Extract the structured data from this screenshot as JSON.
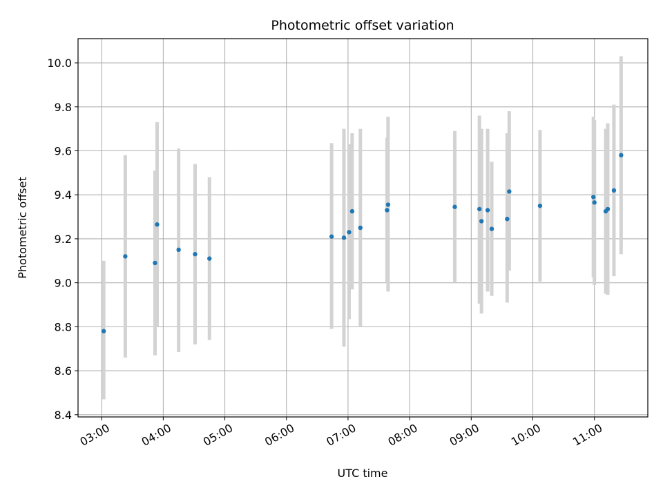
{
  "chart_data": {
    "type": "scatter",
    "title": "Photometric offset variation",
    "xlabel": "UTC time",
    "ylabel": "Photometric offset",
    "xlim": [
      "02:37",
      "11:52"
    ],
    "ylim": [
      8.39,
      10.11
    ],
    "grid": true,
    "x_ticks": [
      "03:00",
      "04:00",
      "05:00",
      "06:00",
      "07:00",
      "08:00",
      "09:00",
      "10:00",
      "11:00"
    ],
    "y_ticks": [
      "8.4",
      "8.6",
      "8.8",
      "9.0",
      "9.2",
      "9.4",
      "9.6",
      "9.8",
      "10.0"
    ],
    "marker_color": "#1f77b4",
    "errorbar_color": "#d3d3d3",
    "points": [
      {
        "x": "03:02",
        "y": 8.78,
        "low": 8.47,
        "high": 9.1
      },
      {
        "x": "03:23",
        "y": 9.12,
        "low": 8.66,
        "high": 9.58
      },
      {
        "x": "03:52",
        "y": 9.09,
        "low": 8.67,
        "high": 9.51
      },
      {
        "x": "03:54",
        "y": 9.265,
        "low": 8.8,
        "high": 9.73
      },
      {
        "x": "04:15",
        "y": 9.15,
        "low": 8.685,
        "high": 9.61
      },
      {
        "x": "04:31",
        "y": 9.13,
        "low": 8.72,
        "high": 9.54
      },
      {
        "x": "04:45",
        "y": 9.11,
        "low": 8.74,
        "high": 9.48
      },
      {
        "x": "06:44",
        "y": 9.21,
        "low": 8.79,
        "high": 9.635
      },
      {
        "x": "06:56",
        "y": 9.205,
        "low": 8.71,
        "high": 9.7
      },
      {
        "x": "07:01",
        "y": 9.23,
        "low": 8.835,
        "high": 9.63
      },
      {
        "x": "07:04",
        "y": 9.325,
        "low": 8.97,
        "high": 9.68
      },
      {
        "x": "07:12",
        "y": 9.25,
        "low": 8.8,
        "high": 9.7
      },
      {
        "x": "07:38",
        "y": 9.33,
        "low": 9.0,
        "high": 9.66
      },
      {
        "x": "07:39",
        "y": 9.355,
        "low": 8.96,
        "high": 9.755
      },
      {
        "x": "08:44",
        "y": 9.345,
        "low": 9.0,
        "high": 9.69
      },
      {
        "x": "09:08",
        "y": 9.335,
        "low": 8.905,
        "high": 9.76
      },
      {
        "x": "09:10",
        "y": 9.28,
        "low": 8.86,
        "high": 9.7
      },
      {
        "x": "09:16",
        "y": 9.33,
        "low": 8.96,
        "high": 9.7
      },
      {
        "x": "09:20",
        "y": 9.245,
        "low": 8.94,
        "high": 9.55
      },
      {
        "x": "09:35",
        "y": 9.29,
        "low": 8.91,
        "high": 9.68
      },
      {
        "x": "09:37",
        "y": 9.415,
        "low": 9.055,
        "high": 9.78
      },
      {
        "x": "10:07",
        "y": 9.35,
        "low": 9.005,
        "high": 9.695
      },
      {
        "x": "10:59",
        "y": 9.39,
        "low": 9.025,
        "high": 9.755
      },
      {
        "x": "11:00",
        "y": 9.365,
        "low": 8.99,
        "high": 9.74
      },
      {
        "x": "11:11",
        "y": 9.325,
        "low": 8.95,
        "high": 9.7
      },
      {
        "x": "11:13",
        "y": 9.335,
        "low": 8.945,
        "high": 9.725
      },
      {
        "x": "11:19",
        "y": 9.42,
        "low": 9.03,
        "high": 9.81
      },
      {
        "x": "11:26",
        "y": 9.58,
        "low": 9.13,
        "high": 10.03
      }
    ]
  }
}
